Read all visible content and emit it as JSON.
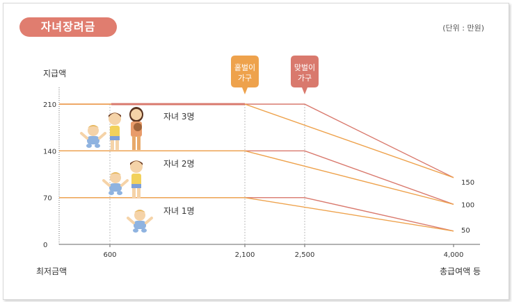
{
  "title": "자녀장려금",
  "unit": "(단위 : 만원)",
  "chart_data": {
    "type": "line",
    "ylabel": "지급액",
    "xlabel_left": "최저금액",
    "xlabel_right": "총급여액 등",
    "x_ticks": [
      "600",
      "2,100",
      "2,500",
      "4,000"
    ],
    "y_ticks": [
      "0",
      "70",
      "140",
      "210"
    ],
    "ylim": [
      0,
      210
    ],
    "markers": [
      {
        "label": "홑벌이 가구",
        "x": 2100,
        "color": "#eea24c"
      },
      {
        "label": "맞벌이 가구",
        "x": 2500,
        "color": "#d9796d"
      }
    ],
    "series": [
      {
        "name": "자녀 3명",
        "plateau": 210,
        "end_single": 100,
        "end_dual": 100,
        "label_end": "150"
      },
      {
        "name": "자녀 2명",
        "plateau": 140,
        "end_single": 60,
        "end_dual": 60,
        "label_end": "100"
      },
      {
        "name": "자녀 1명",
        "plateau": 70,
        "end_single": 20,
        "end_dual": 20,
        "label_end": "50"
      }
    ],
    "line_colors": {
      "single": "#eea24c",
      "dual": "#d9796d"
    }
  }
}
